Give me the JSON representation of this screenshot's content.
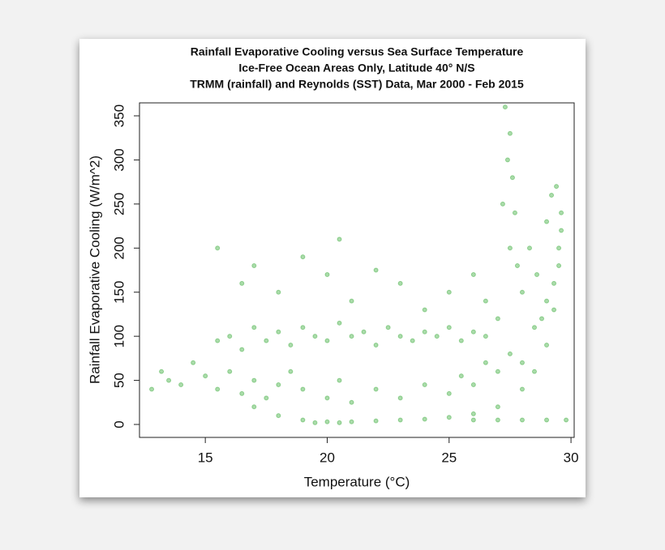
{
  "chart_data": {
    "type": "scatter",
    "title": "Rainfall Evaporative Cooling versus Sea Surface Temperature",
    "subtitle": [
      "Ice-Free Ocean Areas Only, Latitude 40° N/S",
      "TRMM (rainfall) and Reynolds (SST) Data, Mar 2000 - Feb 2015"
    ],
    "x_label": "Temperature (°C)",
    "y_label": "Rainfall Evaporative Cooling (W/m^2)",
    "color": "#0b990b",
    "alpha": 0.35,
    "xlim": [
      12.3,
      30.13
    ],
    "ylim": [
      -14.7,
      364.7
    ],
    "xticks": [
      15,
      20,
      25,
      30
    ],
    "yticks": [
      0,
      50,
      100,
      150,
      200,
      250,
      300,
      350
    ],
    "x": [
      17,
      18,
      19,
      20,
      21,
      22,
      23,
      24,
      25,
      26,
      27,
      28,
      28.5,
      29,
      29.3,
      29.5,
      29.6,
      15.5,
      16,
      16.5,
      17,
      17.5,
      18,
      18.5,
      19,
      19.5,
      20,
      20.5,
      21,
      21.5,
      22,
      22.5,
      23,
      23.5,
      24,
      24.5,
      25,
      25.5,
      26,
      26.5,
      27,
      12.8,
      13.2,
      13.5,
      14,
      14.5,
      15,
      15.5,
      16,
      16.5,
      17,
      17.5,
      18,
      18.5,
      19,
      20,
      20.5,
      21,
      22,
      23,
      24,
      25,
      25.5,
      26,
      26.5,
      27,
      27.5,
      28,
      28.5,
      15.5,
      16.5,
      17,
      18,
      19,
      20,
      20.5,
      21,
      22,
      23,
      24,
      25,
      26,
      26.5,
      27.2,
      27.4,
      27.5,
      27.6,
      27.7,
      27.5,
      27.8,
      28,
      28.3,
      28.6,
      29,
      29.2,
      29.4,
      29.6,
      29.5,
      29.3,
      29,
      28.8,
      27.3,
      26,
      27,
      28,
      29,
      29.8,
      19.5,
      20.5
    ],
    "y": [
      20,
      10,
      5,
      3,
      3,
      4,
      5,
      6,
      8,
      12,
      20,
      40,
      60,
      90,
      130,
      180,
      220,
      95,
      100,
      85,
      110,
      95,
      105,
      90,
      110,
      100,
      95,
      115,
      100,
      105,
      90,
      110,
      100,
      95,
      105,
      100,
      110,
      95,
      105,
      100,
      120,
      40,
      60,
      50,
      45,
      70,
      55,
      40,
      60,
      35,
      50,
      30,
      45,
      60,
      40,
      30,
      50,
      25,
      40,
      30,
      45,
      35,
      55,
      45,
      70,
      60,
      80,
      70,
      110,
      200,
      160,
      180,
      150,
      190,
      170,
      210,
      140,
      175,
      160,
      130,
      150,
      170,
      140,
      250,
      300,
      330,
      280,
      240,
      200,
      180,
      150,
      200,
      170,
      230,
      260,
      270,
      240,
      200,
      160,
      140,
      120,
      360,
      5,
      5,
      5,
      5,
      5,
      2,
      2
    ]
  }
}
